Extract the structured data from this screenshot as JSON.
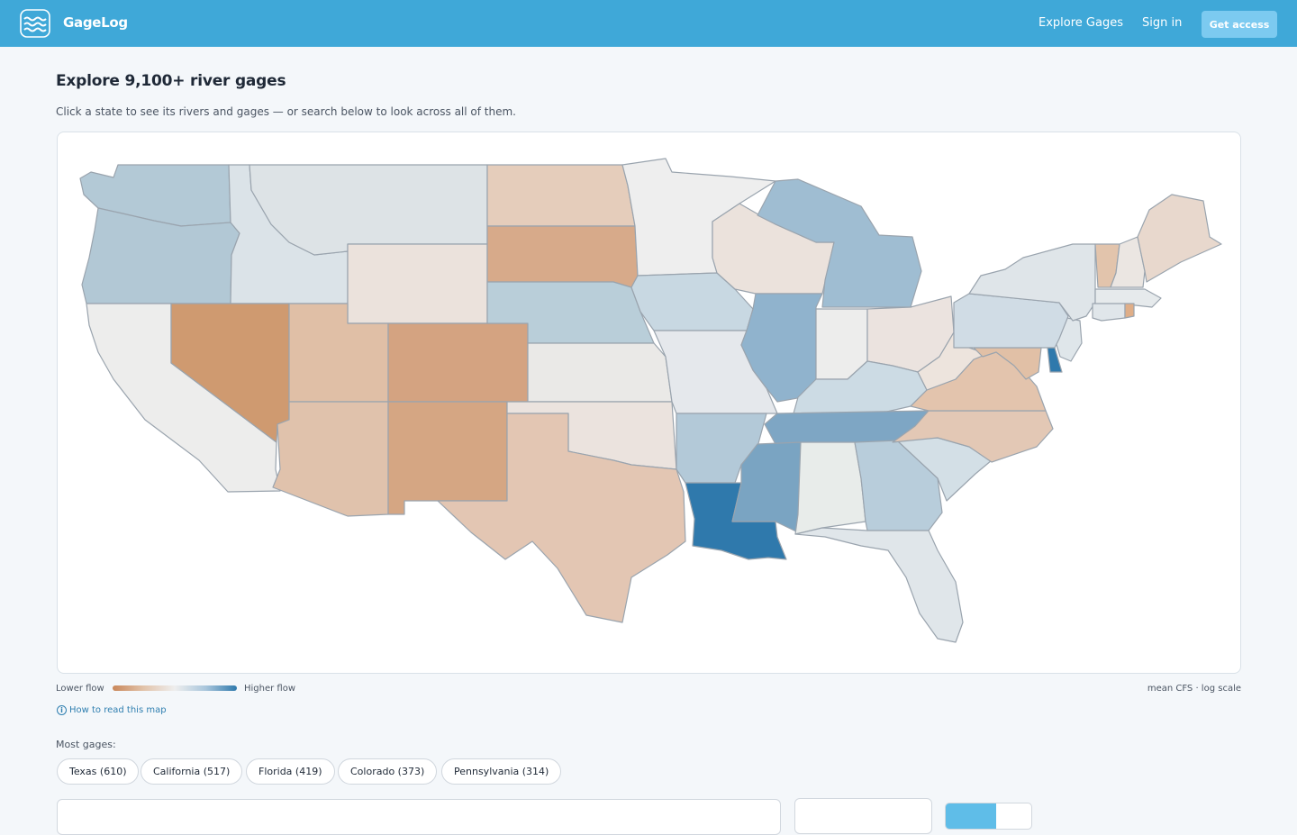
{
  "header": {
    "brand": "GageLog",
    "logo_icon": "waves-icon",
    "nav": {
      "explore": "Explore Gages",
      "signin": "Sign in"
    },
    "cta": "Get access",
    "colors": {
      "bar": "#3fa8d8",
      "cta": "#7ccaf0"
    }
  },
  "main": {
    "title": "Explore 9,100+ river gages",
    "subtitle": "Click a state to see its rivers and gages — or search below to look across all of them."
  },
  "map": {
    "kind": "us-states-choropleth",
    "colors": {
      "lowest": "#c9875a",
      "neutral": "#eeeeee",
      "highest": "#2f79ac"
    },
    "legend": {
      "low": "Lower flow",
      "high": "Higher flow",
      "scale": "mean CFS · log scale"
    },
    "help_link": "How to read this map",
    "states": [
      {
        "name": "Washington",
        "fill": "#b3c9d6"
      },
      {
        "name": "Oregon",
        "fill": "#b2c8d5"
      },
      {
        "name": "California",
        "fill": "#ededec"
      },
      {
        "name": "Idaho",
        "fill": "#dbe3e8"
      },
      {
        "name": "Nevada",
        "fill": "#cf9a70"
      },
      {
        "name": "Montana",
        "fill": "#dde3e6"
      },
      {
        "name": "Wyoming",
        "fill": "#ebe2dc"
      },
      {
        "name": "Utah",
        "fill": "#e0bfa6"
      },
      {
        "name": "Arizona",
        "fill": "#e0c2ac"
      },
      {
        "name": "Colorado",
        "fill": "#d4a381"
      },
      {
        "name": "New Mexico",
        "fill": "#d5a683"
      },
      {
        "name": "North Dakota",
        "fill": "#e5cdbb"
      },
      {
        "name": "South Dakota",
        "fill": "#d7aa8a"
      },
      {
        "name": "Nebraska",
        "fill": "#b9ced9"
      },
      {
        "name": "Kansas",
        "fill": "#eae9e7"
      },
      {
        "name": "Oklahoma",
        "fill": "#ebe3de"
      },
      {
        "name": "Texas",
        "fill": "#e3c6b3"
      },
      {
        "name": "Minnesota",
        "fill": "#eeeeee"
      },
      {
        "name": "Iowa",
        "fill": "#c8d8e2"
      },
      {
        "name": "Missouri",
        "fill": "#e5e8ec"
      },
      {
        "name": "Arkansas",
        "fill": "#b3c9d8"
      },
      {
        "name": "Louisiana",
        "fill": "#2f79ac"
      },
      {
        "name": "Wisconsin",
        "fill": "#ebe2dc"
      },
      {
        "name": "Illinois",
        "fill": "#90b3cd"
      },
      {
        "name": "Michigan",
        "fill": "#9fbdd2"
      },
      {
        "name": "Indiana",
        "fill": "#ededec"
      },
      {
        "name": "Ohio",
        "fill": "#ebe3df"
      },
      {
        "name": "Kentucky",
        "fill": "#ccdbe4"
      },
      {
        "name": "Tennessee",
        "fill": "#7ea6c4"
      },
      {
        "name": "Mississippi",
        "fill": "#7aa4c2"
      },
      {
        "name": "Alabama",
        "fill": "#e8ecea"
      },
      {
        "name": "Georgia",
        "fill": "#b8cddb"
      },
      {
        "name": "Florida",
        "fill": "#e0e6ea"
      },
      {
        "name": "South Carolina",
        "fill": "#d3dfe6"
      },
      {
        "name": "North Carolina",
        "fill": "#e3c8b5"
      },
      {
        "name": "Virginia",
        "fill": "#e3c4ad"
      },
      {
        "name": "West Virginia",
        "fill": "#ede4dd"
      },
      {
        "name": "Maryland",
        "fill": "#e1c0a6"
      },
      {
        "name": "Delaware",
        "fill": "#2f79ac"
      },
      {
        "name": "New Jersey",
        "fill": "#dfe6ea"
      },
      {
        "name": "Pennsylvania",
        "fill": "#d0dce5"
      },
      {
        "name": "New York",
        "fill": "#dfe5e9"
      },
      {
        "name": "Vermont",
        "fill": "#e2c4ac"
      },
      {
        "name": "New Hampshire",
        "fill": "#ebe6e2"
      },
      {
        "name": "Maine",
        "fill": "#e8d8cd"
      },
      {
        "name": "Massachusetts",
        "fill": "#e6eaec"
      },
      {
        "name": "Connecticut",
        "fill": "#e0e6ea"
      },
      {
        "name": "Rhode Island",
        "fill": "#dfae88"
      }
    ]
  },
  "most_gages": {
    "label": "Most gages:",
    "chips": [
      "Texas (610)",
      "California (517)",
      "Florida (419)",
      "Colorado (373)",
      "Pennsylvania (314)"
    ]
  }
}
